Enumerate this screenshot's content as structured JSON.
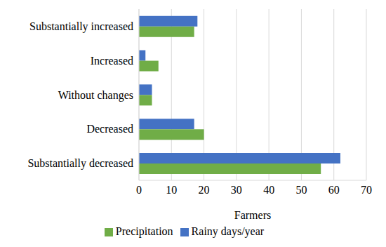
{
  "chart_data": {
    "type": "bar",
    "orientation": "horizontal",
    "categories": [
      "Substantially increased",
      "Increased",
      "Without changes",
      "Decreased",
      "Substantially decreased"
    ],
    "series": [
      {
        "name": "Rainy days/year",
        "color": "#4472c4",
        "values": [
          18,
          2,
          4,
          17,
          62
        ]
      },
      {
        "name": "Precipitation",
        "color": "#70ad47",
        "values": [
          17,
          6,
          4,
          20,
          56
        ]
      }
    ],
    "x_label": "Farmers",
    "xlim": [
      0,
      70
    ],
    "xticks": [
      0,
      10,
      20,
      30,
      40,
      50,
      60,
      70
    ],
    "grid": true,
    "legend": "bottom"
  }
}
